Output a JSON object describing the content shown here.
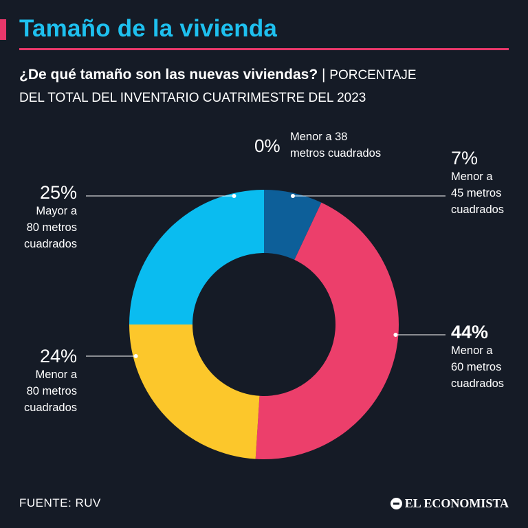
{
  "header": {
    "title": "Tamaño de la vivienda",
    "question": "¿De qué tamaño son las nuevas viviendas?",
    "separator": " | ",
    "unit_line1": "PORCENTAJE",
    "unit_line2": "DEL TOTAL DEL INVENTARIO CUATRIMESTRE DEL 2023"
  },
  "chart_data": {
    "type": "pie",
    "variant": "donut",
    "title": "¿De qué tamaño son las nuevas viviendas?",
    "unit": "Porcentaje del total del inventario cuatrimestre del 2023",
    "slices": [
      {
        "value": 0,
        "pct_label": "0%",
        "label_lines": [
          "Menor a 38",
          "metros cuadrados"
        ],
        "color": "#0d5f99"
      },
      {
        "value": 7,
        "pct_label": "7%",
        "label_lines": [
          "Menor a",
          "45 metros",
          "cuadrados"
        ],
        "color": "#0d5f99"
      },
      {
        "value": 44,
        "pct_label": "44%",
        "label_lines": [
          "Menor a",
          "60 metros",
          "cuadrados"
        ],
        "color": "#ec3f6b"
      },
      {
        "value": 24,
        "pct_label": "24%",
        "label_lines": [
          "Menor a",
          "80 metros",
          "cuadrados"
        ],
        "color": "#fcc72b"
      },
      {
        "value": 25,
        "pct_label": "25%",
        "label_lines": [
          "Mayor a",
          "80 metros",
          "cuadrados"
        ],
        "color": "#0abcf0"
      }
    ]
  },
  "footer": {
    "source": "FUENTE: RUV",
    "brand": "EL ECONOMISTA"
  }
}
